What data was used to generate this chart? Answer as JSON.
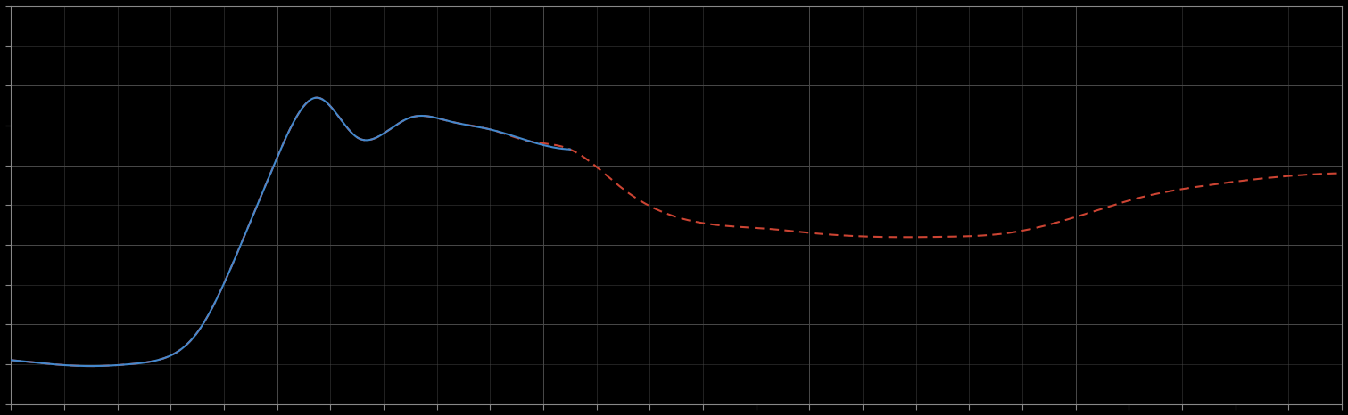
{
  "background_color": "#000000",
  "plot_bg_color": "#000000",
  "grid_color": "#4a4a4a",
  "blue_color": "#4488cc",
  "red_color": "#cc4433",
  "figsize": [
    15.11,
    4.66
  ],
  "dpi": 100,
  "xlim": [
    0,
    100
  ],
  "ylim": [
    0,
    100
  ],
  "spine_color": "#888888",
  "tick_color": "#888888",
  "blue_x": [
    0,
    3,
    6,
    9,
    11,
    14,
    17,
    20,
    23,
    26,
    28,
    30,
    33,
    36,
    39,
    42
  ],
  "blue_y": [
    11,
    10,
    9.5,
    10,
    11,
    18,
    38,
    62,
    77,
    67,
    68,
    72,
    71,
    69,
    66,
    64
  ],
  "red_x": [
    0,
    3,
    6,
    9,
    11,
    14,
    17,
    20,
    23,
    26,
    28,
    30,
    33,
    36,
    39,
    42,
    46,
    50,
    53,
    57,
    60,
    65,
    70,
    75,
    80,
    85,
    90,
    95,
    100
  ],
  "red_y": [
    11,
    10,
    9.5,
    10,
    11,
    18,
    38,
    62,
    77,
    67,
    68,
    72,
    71,
    69,
    66,
    64,
    54,
    47,
    45,
    44,
    43,
    42,
    42,
    43,
    47,
    52,
    55,
    57,
    58
  ]
}
